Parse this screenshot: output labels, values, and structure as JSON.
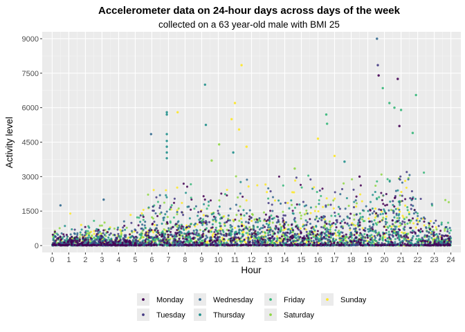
{
  "chart_data": {
    "type": "scatter",
    "title": "Accelerometer data on 24-hour days across days of the week",
    "subtitle": "collected on a 63 year-old male with BMI 25",
    "xlabel": "Hour",
    "ylabel": "Activity level",
    "xlim": [
      -0.6,
      24.6
    ],
    "ylim": [
      -300,
      9300
    ],
    "x_ticks": [
      "0",
      "1",
      "2",
      "3",
      "4",
      "5",
      "6",
      "7",
      "8",
      "9",
      "10",
      "11",
      "12",
      "13",
      "14",
      "15",
      "16",
      "17",
      "18",
      "19",
      "20",
      "21",
      "22",
      "23",
      "24"
    ],
    "y_ticks": [
      "0",
      "1500",
      "3000",
      "4500",
      "6000",
      "7500",
      "9000"
    ],
    "grid": true,
    "legend_position": "bottom",
    "series": [
      {
        "name": "Monday",
        "color": "#440154"
      },
      {
        "name": "Tuesday",
        "color": "#443A83"
      },
      {
        "name": "Wednesday",
        "color": "#31688E"
      },
      {
        "name": "Thursday",
        "color": "#21908C"
      },
      {
        "name": "Friday",
        "color": "#35B779"
      },
      {
        "name": "Saturday",
        "color": "#8FD744"
      },
      {
        "name": "Sunday",
        "color": "#FDE725"
      }
    ],
    "highlight_points": [
      {
        "series": "Wednesday",
        "x": 19.55,
        "y": 9000
      },
      {
        "series": "Tuesday",
        "x": 19.6,
        "y": 7850
      },
      {
        "series": "Monday",
        "x": 19.65,
        "y": 7400
      },
      {
        "series": "Sunday",
        "x": 11.4,
        "y": 7850
      },
      {
        "series": "Thursday",
        "x": 9.2,
        "y": 7000
      },
      {
        "series": "Monday",
        "x": 20.8,
        "y": 7250
      },
      {
        "series": "Sunday",
        "x": 11.0,
        "y": 6200
      },
      {
        "series": "Friday",
        "x": 21.9,
        "y": 6550
      },
      {
        "series": "Friday",
        "x": 19.9,
        "y": 6850
      },
      {
        "series": "Thursday",
        "x": 6.9,
        "y": 5800
      },
      {
        "series": "Thursday",
        "x": 6.9,
        "y": 5700
      },
      {
        "series": "Sunday",
        "x": 7.55,
        "y": 5800
      },
      {
        "series": "Wednesday",
        "x": 5.95,
        "y": 4850
      },
      {
        "series": "Thursday",
        "x": 6.9,
        "y": 4850
      },
      {
        "series": "Thursday",
        "x": 6.9,
        "y": 4550
      },
      {
        "series": "Thursday",
        "x": 6.9,
        "y": 4300
      },
      {
        "series": "Thursday",
        "x": 6.9,
        "y": 4050
      },
      {
        "series": "Thursday",
        "x": 6.9,
        "y": 3800
      },
      {
        "series": "Friday",
        "x": 16.5,
        "y": 5700
      },
      {
        "series": "Friday",
        "x": 16.55,
        "y": 5300
      },
      {
        "series": "Thursday",
        "x": 9.25,
        "y": 5250
      },
      {
        "series": "Sunday",
        "x": 11.25,
        "y": 5050
      },
      {
        "series": "Sunday",
        "x": 10.8,
        "y": 5500
      },
      {
        "series": "Friday",
        "x": 20.3,
        "y": 6200
      },
      {
        "series": "Friday",
        "x": 20.6,
        "y": 6000
      },
      {
        "series": "Friday",
        "x": 21.0,
        "y": 5900
      },
      {
        "series": "Monday",
        "x": 20.9,
        "y": 5200
      },
      {
        "series": "Friday",
        "x": 21.7,
        "y": 4900
      },
      {
        "series": "Sunday",
        "x": 16.0,
        "y": 4650
      },
      {
        "series": "Saturday",
        "x": 10.05,
        "y": 4400
      },
      {
        "series": "Sunday",
        "x": 11.7,
        "y": 4300
      },
      {
        "series": "Thursday",
        "x": 10.9,
        "y": 4050
      },
      {
        "series": "Thursday",
        "x": 17.6,
        "y": 3650
      },
      {
        "series": "Sunday",
        "x": 17.0,
        "y": 3900
      },
      {
        "series": "Saturday",
        "x": 14.6,
        "y": 3350
      },
      {
        "series": "Wednesday",
        "x": 3.1,
        "y": 2000
      },
      {
        "series": "Wednesday",
        "x": 0.5,
        "y": 1750
      },
      {
        "series": "Saturday",
        "x": 9.6,
        "y": 3700
      },
      {
        "series": "Monday",
        "x": 18.5,
        "y": 3000
      }
    ]
  }
}
